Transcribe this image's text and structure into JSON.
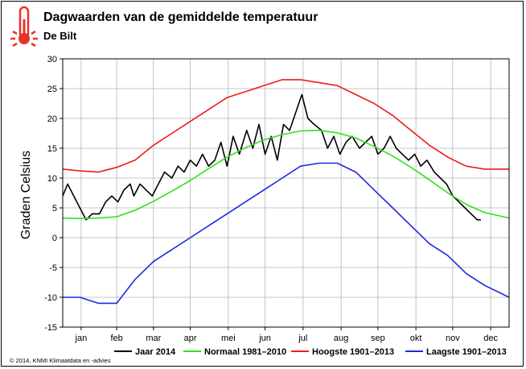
{
  "header": {
    "title": "Dagwaarden van de gemiddelde temperatuur",
    "subtitle": "De Bilt",
    "thermometer_icon": "thermometer-icon",
    "accent_color": "#e8312a"
  },
  "footer": {
    "copyright": "© 2014, KNMI Klimaatdata en -advies"
  },
  "chart_data": {
    "type": "line",
    "title": "Dagwaarden van de gemiddelde temperatuur",
    "subtitle": "De Bilt",
    "ylabel": "Graden Celsius",
    "xlabel": "",
    "ylim": [
      -15,
      30
    ],
    "yticks": [
      -15,
      -10,
      -5,
      0,
      5,
      10,
      15,
      20,
      25,
      30
    ],
    "xlim": [
      1,
      365
    ],
    "grid": true,
    "legend_position": "bottom",
    "months": [
      {
        "label": "jan",
        "mid_day": 16
      },
      {
        "label": "feb",
        "mid_day": 45
      },
      {
        "label": "mar",
        "mid_day": 75
      },
      {
        "label": "apr",
        "mid_day": 105
      },
      {
        "label": "mei",
        "mid_day": 136
      },
      {
        "label": "jun",
        "mid_day": 166
      },
      {
        "label": "jul",
        "mid_day": 197
      },
      {
        "label": "aug",
        "mid_day": 228
      },
      {
        "label": "sep",
        "mid_day": 258
      },
      {
        "label": "okt",
        "mid_day": 289
      },
      {
        "label": "nov",
        "mid_day": 319
      },
      {
        "label": "dec",
        "mid_day": 350
      }
    ],
    "series": [
      {
        "name": "Jaar 2014",
        "color": "#000000",
        "x": [
          1,
          5,
          10,
          15,
          20,
          25,
          31,
          36,
          41,
          46,
          51,
          56,
          59,
          64,
          69,
          74,
          79,
          84,
          90,
          95,
          100,
          105,
          110,
          115,
          120,
          125,
          130,
          135,
          140,
          145,
          151,
          156,
          161,
          166,
          171,
          176,
          181,
          186,
          191,
          196,
          201,
          206,
          212,
          217,
          222,
          227,
          232,
          237,
          243,
          248,
          253,
          258,
          263,
          268,
          273,
          278,
          283,
          288,
          293,
          298,
          304,
          309,
          314,
          319,
          324,
          329,
          334,
          339,
          342
        ],
        "y": [
          7,
          9,
          7,
          5,
          3,
          4,
          4,
          6,
          7,
          6,
          8,
          9,
          7,
          9,
          8,
          7,
          9,
          11,
          10,
          12,
          11,
          13,
          12,
          14,
          12,
          13,
          16,
          12,
          17,
          14,
          18,
          15,
          19,
          14,
          17,
          13,
          19,
          18,
          21,
          24,
          20,
          19,
          18,
          15,
          17,
          14,
          16,
          17,
          15,
          16,
          17,
          14,
          15,
          17,
          15,
          14,
          13,
          14,
          12,
          13,
          11,
          10,
          9,
          7,
          6,
          5,
          4,
          3,
          3
        ]
      },
      {
        "name": "Normaal 1981–2010",
        "color": "#33e01c",
        "x": [
          1,
          15,
          30,
          45,
          60,
          75,
          90,
          105,
          120,
          135,
          150,
          165,
          180,
          195,
          210,
          225,
          240,
          255,
          270,
          285,
          300,
          315,
          330,
          345,
          365
        ],
        "y": [
          3.3,
          3.2,
          3.3,
          3.5,
          4.6,
          6.1,
          7.8,
          9.6,
          11.6,
          13.5,
          15.1,
          16.4,
          17.3,
          17.9,
          18.0,
          17.6,
          16.7,
          15.3,
          13.7,
          11.8,
          9.7,
          7.5,
          5.6,
          4.2,
          3.3
        ]
      },
      {
        "name": "Hoogste 1901–2013",
        "color": "#ee1b1b",
        "x": [
          1,
          15,
          30,
          45,
          60,
          75,
          90,
          105,
          120,
          135,
          150,
          165,
          180,
          195,
          210,
          225,
          240,
          255,
          270,
          285,
          300,
          315,
          330,
          345,
          365
        ],
        "y": [
          11.5,
          11.2,
          11.0,
          11.8,
          13.0,
          15.5,
          17.5,
          19.5,
          21.5,
          23.5,
          24.5,
          25.5,
          26.5,
          26.5,
          26.0,
          25.5,
          24.0,
          22.5,
          20.5,
          18.0,
          15.5,
          13.5,
          12.0,
          11.5,
          11.5
        ]
      },
      {
        "name": "Laagste 1901–2013",
        "color": "#1c2ae0",
        "x": [
          1,
          15,
          30,
          45,
          60,
          75,
          90,
          105,
          120,
          135,
          150,
          165,
          180,
          195,
          210,
          225,
          240,
          255,
          270,
          285,
          300,
          315,
          330,
          345,
          365
        ],
        "y": [
          -10,
          -10,
          -11,
          -11,
          -7,
          -4,
          -2,
          0,
          2,
          4,
          6,
          8,
          10,
          12,
          12.5,
          12.5,
          11,
          8,
          5,
          2,
          -1,
          -3,
          -6,
          -8,
          -10
        ]
      }
    ]
  }
}
